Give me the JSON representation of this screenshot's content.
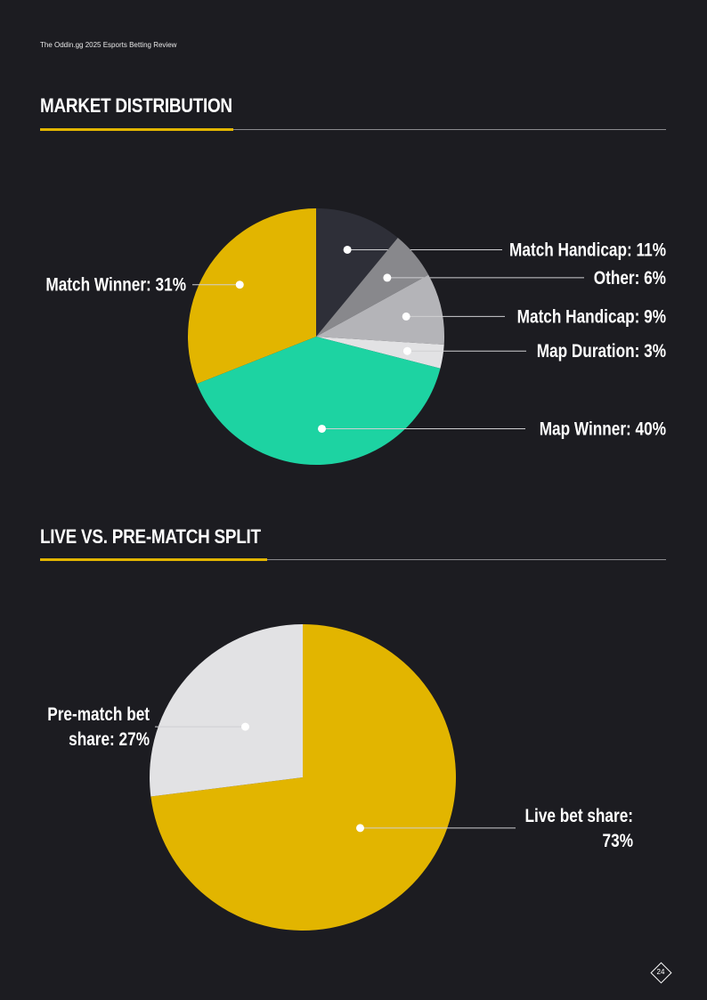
{
  "header": {
    "running_title": "The Oddin.gg 2025 Esports Betting Review"
  },
  "sections": [
    {
      "title": "MARKET DISTRIBUTION"
    },
    {
      "title": "LIVE VS. PRE-MATCH SPLIT"
    }
  ],
  "chart_data": [
    {
      "type": "pie",
      "title": "MARKET DISTRIBUTION",
      "slices": [
        {
          "label": "Match Handicap: 11%",
          "value": 11,
          "color": "#2e2f38"
        },
        {
          "label": "Other: 6%",
          "value": 6,
          "color": "#88888c"
        },
        {
          "label": "Match Handicap: 9%",
          "value": 9,
          "color": "#b4b4b8"
        },
        {
          "label": "Map Duration: 3%",
          "value": 3,
          "color": "#e2e2e4"
        },
        {
          "label": "Map Winner: 40%",
          "value": 40,
          "color": "#1dd3a2"
        },
        {
          "label": "Match Winner: 31%",
          "value": 31,
          "color": "#e2b500"
        }
      ]
    },
    {
      "type": "pie",
      "title": "LIVE VS. PRE-MATCH SPLIT",
      "slices": [
        {
          "label": [
            "Live bet share:",
            "73%"
          ],
          "value": 73,
          "color": "#e2b500"
        },
        {
          "label": [
            "Pre-match bet",
            "share: 27%"
          ],
          "value": 27,
          "color": "#e2e2e4"
        }
      ]
    }
  ],
  "footer": {
    "page_number": "24"
  }
}
